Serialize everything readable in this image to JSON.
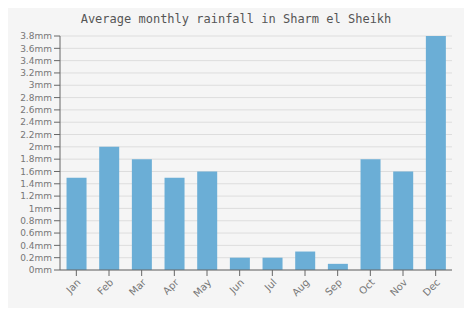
{
  "chart_data": {
    "type": "bar",
    "title": "Average monthly rainfall in Sharm el Sheikh",
    "categories": [
      "Jan",
      "Feb",
      "Mar",
      "Apr",
      "May",
      "Jun",
      "Jul",
      "Aug",
      "Sep",
      "Oct",
      "Nov",
      "Dec"
    ],
    "values": [
      1.5,
      2.0,
      1.8,
      1.5,
      1.6,
      0.2,
      0.2,
      0.3,
      0.1,
      1.8,
      1.6,
      3.8
    ],
    "color": "#6baed6",
    "ylim": [
      0,
      3.8
    ],
    "yticks": [
      {
        "value": 0,
        "label": "0mm"
      },
      {
        "value": 0.2,
        "label": "0.2mm"
      },
      {
        "value": 0.4,
        "label": "0.4mm"
      },
      {
        "value": 0.6,
        "label": "0.6mm"
      },
      {
        "value": 0.8,
        "label": "0.8mm"
      },
      {
        "value": 1.0,
        "label": "1mm"
      },
      {
        "value": 1.2,
        "label": "1.2mm"
      },
      {
        "value": 1.4,
        "label": "1.4mm"
      },
      {
        "value": 1.6,
        "label": "1.6mm"
      },
      {
        "value": 1.8,
        "label": "1.8mm"
      },
      {
        "value": 2.0,
        "label": "2mm"
      },
      {
        "value": 2.2,
        "label": "2.2mm"
      },
      {
        "value": 2.4,
        "label": "2.4mm"
      },
      {
        "value": 2.6,
        "label": "2.6mm"
      },
      {
        "value": 2.8,
        "label": "2.8mm"
      },
      {
        "value": 3.0,
        "label": "3mm"
      },
      {
        "value": 3.2,
        "label": "3.2mm"
      },
      {
        "value": 3.4,
        "label": "3.4mm"
      },
      {
        "value": 3.6,
        "label": "3.6mm"
      },
      {
        "value": 3.8,
        "label": "3.8mm"
      }
    ],
    "grid": true
  }
}
